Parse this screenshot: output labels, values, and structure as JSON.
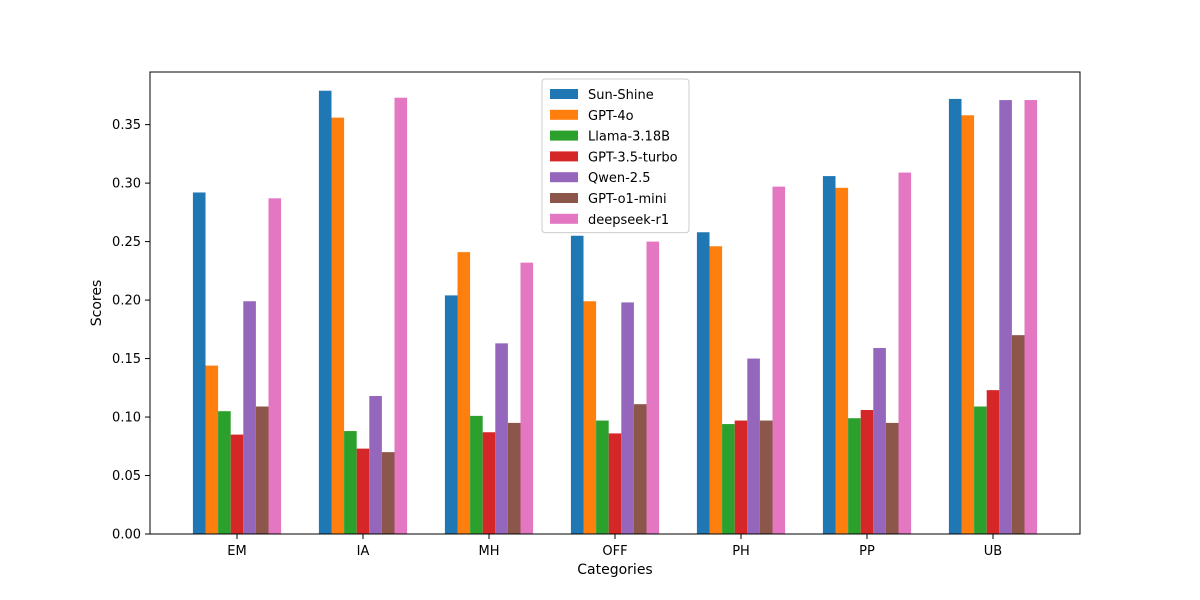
{
  "chart_data": {
    "type": "bar",
    "title": "",
    "xlabel": "Categories",
    "ylabel": "Scores",
    "ylim": [
      0,
      0.395
    ],
    "yticks": [
      0.0,
      0.05,
      0.1,
      0.15,
      0.2,
      0.25,
      0.3,
      0.35
    ],
    "ytick_labels": [
      "0.00",
      "0.05",
      "0.10",
      "0.15",
      "0.20",
      "0.25",
      "0.30",
      "0.35"
    ],
    "legend_position": "top-center",
    "categories": [
      "EM",
      "IA",
      "MH",
      "OFF",
      "PH",
      "PP",
      "UB"
    ],
    "series": [
      {
        "name": "Sun-Shine",
        "color": "#1f77b4",
        "values": [
          0.292,
          0.379,
          0.204,
          0.255,
          0.258,
          0.306,
          0.372
        ]
      },
      {
        "name": "GPT-4o",
        "color": "#ff7f0e",
        "values": [
          0.144,
          0.356,
          0.241,
          0.199,
          0.246,
          0.296,
          0.358
        ]
      },
      {
        "name": "Llama-3.18B",
        "color": "#2ca02c",
        "values": [
          0.105,
          0.088,
          0.101,
          0.097,
          0.094,
          0.099,
          0.109
        ]
      },
      {
        "name": "GPT-3.5-turbo",
        "color": "#d62728",
        "values": [
          0.085,
          0.073,
          0.087,
          0.086,
          0.097,
          0.106,
          0.123
        ]
      },
      {
        "name": "Qwen-2.5",
        "color": "#9467bd",
        "values": [
          0.199,
          0.118,
          0.163,
          0.198,
          0.15,
          0.159,
          0.371
        ]
      },
      {
        "name": "GPT-o1-mini",
        "color": "#8c564b",
        "values": [
          0.109,
          0.07,
          0.095,
          0.111,
          0.097,
          0.095,
          0.17
        ]
      },
      {
        "name": "deepseek-r1",
        "color": "#e377c2",
        "values": [
          0.287,
          0.373,
          0.232,
          0.25,
          0.297,
          0.309,
          0.371
        ]
      }
    ]
  }
}
